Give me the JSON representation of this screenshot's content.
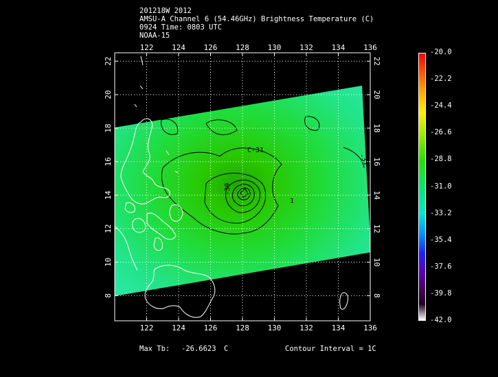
{
  "header": {
    "line1": "201218W 2012",
    "line2": "AMSU-A Channel 6 (54.46GHz) Brightness Temperature (C)",
    "line3": "0924 Time: 0803 UTC",
    "line4": "NOAA-15"
  },
  "map": {
    "lon_labels": [
      "122",
      "124",
      "126",
      "128",
      "130",
      "132",
      "134",
      "136"
    ],
    "lat_labels": [
      "8",
      "10",
      "12",
      "14",
      "16",
      "18",
      "20",
      "22"
    ],
    "lon_range": [
      120,
      136
    ],
    "lat_range": [
      6.5,
      22.5
    ],
    "contour_labels": [
      "C-31",
      "-30",
      "1",
      "-31"
    ],
    "grid": true,
    "coastline_color": "#ffffff",
    "field_colors": {
      "center": "#22c400",
      "mid": "#1fe01f",
      "edge": "#2ee8a8"
    }
  },
  "colorbar": {
    "ticks": [
      "-20.0",
      "-22.2",
      "-24.4",
      "-26.6",
      "-28.8",
      "-31.0",
      "-33.2",
      "-35.4",
      "-37.6",
      "-39.8",
      "-42.0"
    ],
    "range": [
      -42.0,
      -20.0
    ]
  },
  "footer": {
    "max_label": "Max Tb:",
    "max_value": "-26.6623",
    "max_unit": "C",
    "interval": "Contour Interval = 1C"
  }
}
